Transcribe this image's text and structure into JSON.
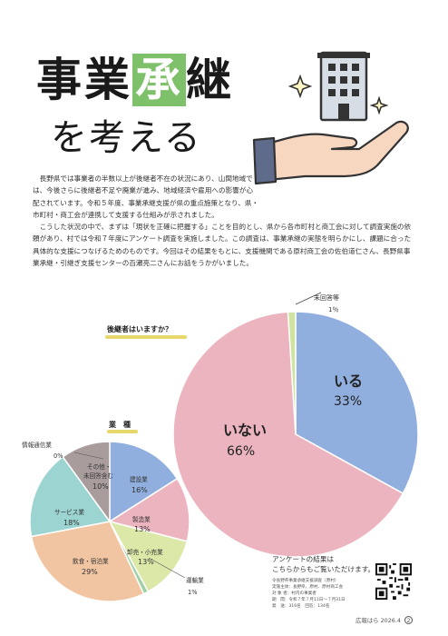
{
  "title": {
    "part1": "事業",
    "highlight": "承",
    "part2": "継",
    "subtitle": "を考える"
  },
  "body": {
    "p1": "長野県では事業者の半数以上が後継者不在の状況にあり、山間地域では、今後さらに後継者不足や廃業が進み、地域経済や雇用への影響が心配されています。令和５年度、事業承継支援が県の重点施策となり、県・市町村・商工会が連携して支援する仕組みが示されました。",
    "p2": "こうした状況の中で、まずは「現状を正確に把握する」ことを目的とし、県から各市町村と商工会に対して調査実施の依頼があり、村では令和７年度にアンケート調査を実施しました。この調査は、事業承継の実態を明らかにし、課題に合った具体的な支援につなげるためのものです。今回はその結果をもとに、支援機関である原村商工会の佐伯道仁さん、長野県事業承継・引継ぎ支援センターの百瀬亮二さんにお話をうかがいました。"
  },
  "chart_data": [
    {
      "type": "pie",
      "title": "後継者はいますか？",
      "categories": [
        "いる",
        "いない",
        "未回答等"
      ],
      "values": [
        33,
        66,
        1
      ],
      "colors": [
        "#90aede",
        "#ecb4bf",
        "#cfe2a0"
      ],
      "labels": [
        "33%",
        "66%",
        "1％"
      ]
    },
    {
      "type": "pie",
      "title": "業　種",
      "categories": [
        "建設業",
        "製造業",
        "卸売・小売業",
        "運輸業",
        "飲食・宿泊業",
        "サービス業",
        "情報通信業",
        "その他・未回答含む"
      ],
      "values": [
        16,
        13,
        13,
        1,
        29,
        18,
        0,
        10
      ],
      "colors": [
        "#90aede",
        "#ecb4bf",
        "#dbe8a8",
        "#9fcfa4",
        "#f1c4a2",
        "#9bd4d0",
        "#c9c9c9",
        "#a89c9c"
      ],
      "labels": [
        "16%",
        "13%",
        "13%",
        "1%",
        "29%",
        "18%",
        "0%",
        "10%"
      ]
    }
  ],
  "pie1_labels": {
    "iru": "いる",
    "iru_pct": "33%",
    "inai": "いない",
    "inai_pct": "66%",
    "mikaitou": "未回答等",
    "mikaitou_pct": "1％"
  },
  "pie2_labels": {
    "kensetsu": "建設業",
    "kensetsu_pct": "16%",
    "seizou": "製造業",
    "seizou_pct": "13%",
    "oroshi": "卸売・小売業",
    "oroshi_pct": "13%",
    "unyu": "運輸業",
    "unyu_pct": "1%",
    "inshoku": "飲食・宿泊業",
    "inshoku_pct": "29%",
    "service": "サービス業",
    "service_pct": "18%",
    "jouhou": "情報通信業",
    "jouhou_pct": "0%",
    "sonota1": "その他・",
    "sonota2": "未回答含む",
    "sonota_pct": "10%"
  },
  "note": {
    "line1": "アンケートの結果は",
    "line2": "こちらからもご覧いただけます。"
  },
  "meta": {
    "l1": "令長野県事業承継支援調査（原村）",
    "l2": "実施主体：長野県、原村、原村商工会",
    "l3": "対 象 者：村内の事業者",
    "l4": "期　間：令和７年７月11日〜７月31日",
    "l5": "発　送：316名　回答：134名"
  },
  "footer": {
    "magazine": "広報はら 2026.4",
    "page": "2"
  }
}
